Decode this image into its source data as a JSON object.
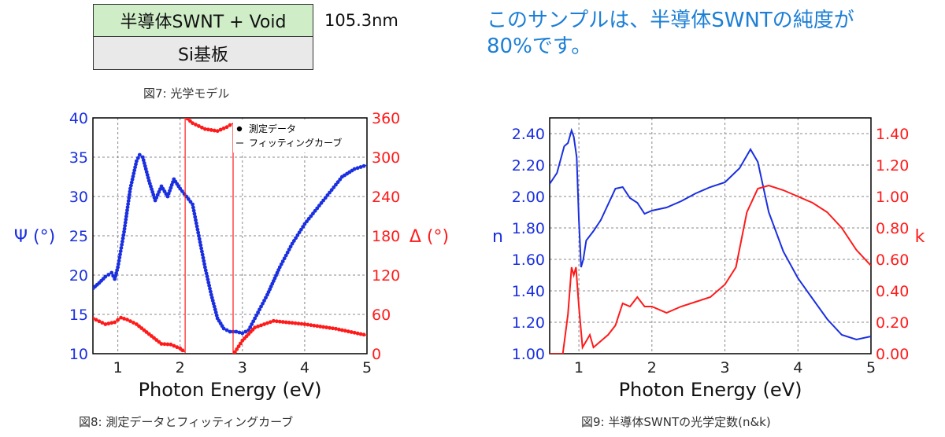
{
  "model": {
    "top_layer": "半導体SWNT + Void",
    "bottom_layer": "Si基板",
    "thickness": "105.3nm",
    "caption": "図7: 光学モデル"
  },
  "note": "このサンプルは、半導体SWNTの純度が80%です。",
  "captions": {
    "fig8": "図8: 測定データとフィッティングカーブ",
    "fig9": "図9: 半導体SWNTの光学定数(n&k)"
  },
  "colors": {
    "blue": "#1a2fe0",
    "red": "#ff1a1a",
    "text": "#333333"
  },
  "chart_data": [
    {
      "type": "line",
      "xlabel": "Photon Energy (eV)",
      "xlim": [
        0.6,
        5.0
      ],
      "x_ticks": [
        "1",
        "2",
        "3",
        "4",
        "5"
      ],
      "left_axis": {
        "label": "Ψ (°)",
        "ylim": [
          10,
          40
        ],
        "ticks": [
          "10",
          "15",
          "20",
          "25",
          "30",
          "35",
          "40"
        ]
      },
      "right_axis": {
        "label": "Δ (°)",
        "ylim": [
          0,
          360
        ],
        "ticks": [
          "0",
          "60",
          "120",
          "180",
          "240",
          "300",
          "360"
        ]
      },
      "legend": {
        "position": "top-right",
        "entries": [
          "測定データ",
          "フィッティングカーブ"
        ]
      },
      "series": [
        {
          "axis": "left",
          "color": "#1a2fe0",
          "x": [
            0.6,
            0.7,
            0.8,
            0.9,
            0.95,
            1.0,
            1.1,
            1.2,
            1.3,
            1.35,
            1.4,
            1.5,
            1.6,
            1.7,
            1.8,
            1.9,
            2.0,
            2.1,
            2.2,
            2.3,
            2.4,
            2.5,
            2.6,
            2.7,
            2.8,
            2.9,
            3.0,
            3.1,
            3.2,
            3.4,
            3.6,
            3.8,
            4.0,
            4.2,
            4.4,
            4.6,
            4.8,
            5.0
          ],
          "y": [
            18.3,
            19.0,
            19.8,
            20.3,
            19.5,
            21.0,
            25.5,
            31.0,
            34.5,
            35.3,
            35.0,
            32.0,
            29.5,
            31.3,
            30.0,
            32.2,
            31.0,
            30.0,
            29.0,
            25.0,
            21.0,
            17.5,
            14.5,
            13.2,
            12.8,
            12.8,
            12.6,
            13.0,
            14.5,
            17.5,
            21.0,
            24.0,
            26.5,
            28.5,
            30.5,
            32.5,
            33.5,
            34.0
          ]
        },
        {
          "axis": "right",
          "color": "#ff1a1a",
          "x": [
            0.6,
            0.8,
            0.95,
            1.05,
            1.15,
            1.3,
            1.5,
            1.7,
            1.85,
            2.0,
            2.08,
            2.08,
            2.2,
            2.4,
            2.6,
            2.75,
            2.85,
            2.85,
            3.0,
            3.2,
            3.5,
            4.0,
            4.5,
            5.0
          ],
          "y": [
            54,
            45,
            48,
            55,
            52,
            45,
            30,
            15,
            14,
            8,
            2,
            362,
            352,
            343,
            340,
            346,
            352,
            -2,
            20,
            40,
            50,
            45,
            38,
            28
          ]
        }
      ]
    },
    {
      "type": "line",
      "xlabel": "Photon Energy (eV)",
      "xlim": [
        0.6,
        5.0
      ],
      "x_ticks": [
        "1",
        "2",
        "3",
        "4",
        "5"
      ],
      "left_axis": {
        "label": "n",
        "ylim": [
          1.0,
          2.5
        ],
        "ticks": [
          "1.00",
          "1.20",
          "1.40",
          "1.60",
          "1.80",
          "2.00",
          "2.20",
          "2.40"
        ]
      },
      "right_axis": {
        "label": "k",
        "ylim": [
          0.0,
          1.5
        ],
        "ticks": [
          "0.00",
          "0.20",
          "0.40",
          "0.60",
          "0.80",
          "1.00",
          "1.20",
          "1.40"
        ]
      },
      "series": [
        {
          "axis": "left",
          "color": "#1a2fe0",
          "x": [
            0.6,
            0.7,
            0.8,
            0.85,
            0.9,
            0.93,
            0.97,
            1.0,
            1.03,
            1.06,
            1.1,
            1.2,
            1.3,
            1.4,
            1.5,
            1.6,
            1.7,
            1.8,
            1.9,
            2.0,
            2.2,
            2.4,
            2.6,
            2.8,
            3.0,
            3.2,
            3.35,
            3.45,
            3.6,
            3.8,
            4.0,
            4.2,
            4.4,
            4.6,
            4.8,
            5.0
          ],
          "y": [
            2.08,
            2.15,
            2.32,
            2.34,
            2.42,
            2.38,
            2.25,
            1.85,
            1.55,
            1.6,
            1.72,
            1.78,
            1.85,
            1.95,
            2.05,
            2.06,
            1.99,
            1.96,
            1.89,
            1.91,
            1.93,
            1.97,
            2.02,
            2.06,
            2.09,
            2.18,
            2.3,
            2.22,
            1.9,
            1.65,
            1.48,
            1.35,
            1.22,
            1.12,
            1.09,
            1.11
          ]
        },
        {
          "axis": "right",
          "color": "#ff1a1a",
          "x": [
            0.6,
            0.78,
            0.85,
            0.9,
            0.93,
            0.96,
            1.0,
            1.05,
            1.1,
            1.15,
            1.2,
            1.3,
            1.4,
            1.5,
            1.6,
            1.7,
            1.8,
            1.9,
            2.0,
            2.2,
            2.4,
            2.6,
            2.8,
            3.0,
            3.15,
            3.3,
            3.45,
            3.6,
            3.8,
            4.0,
            4.2,
            4.4,
            4.6,
            4.8,
            5.0
          ],
          "y": [
            0.0,
            0.0,
            0.25,
            0.55,
            0.5,
            0.55,
            0.3,
            0.04,
            0.08,
            0.12,
            0.04,
            0.08,
            0.12,
            0.18,
            0.32,
            0.3,
            0.36,
            0.3,
            0.3,
            0.26,
            0.3,
            0.33,
            0.36,
            0.44,
            0.55,
            0.9,
            1.05,
            1.07,
            1.04,
            1.0,
            0.96,
            0.9,
            0.8,
            0.66,
            0.56
          ]
        }
      ]
    }
  ]
}
